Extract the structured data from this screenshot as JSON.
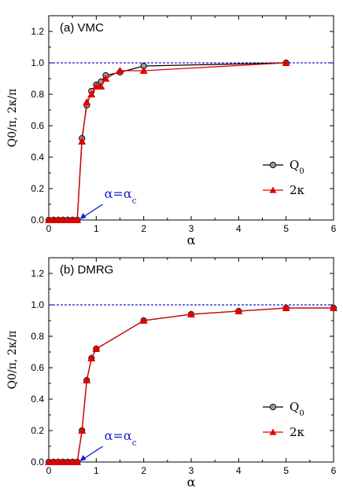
{
  "chart_data": [
    {
      "type": "line",
      "title": "(a) VMC",
      "xlabel": "α",
      "ylabel": "Q0/π, 2κ/π",
      "xlim": [
        0,
        6
      ],
      "ylim": [
        0,
        1.3
      ],
      "xticks": [
        "0",
        "1",
        "2",
        "3",
        "4",
        "5",
        "6"
      ],
      "yticks": [
        "0.0",
        "0.2",
        "0.4",
        "0.6",
        "0.8",
        "1.0",
        "1.2"
      ],
      "reference_line": {
        "y": 1.0,
        "style": "dotted",
        "color": "#1a1adb"
      },
      "annotation": {
        "text": "α=α",
        "subscript": "c",
        "x": 0.64,
        "y": 0.0,
        "color": "#1a1adb"
      },
      "legend": {
        "placement": "right",
        "entries": [
          {
            "name": "Q",
            "sub": "0"
          },
          {
            "name": "2κ",
            "sub": ""
          }
        ]
      },
      "series": [
        {
          "name": "Q0",
          "marker": "circle",
          "color": "#000000",
          "x": [
            0,
            0.1,
            0.2,
            0.3,
            0.4,
            0.5,
            0.6,
            0.7,
            0.8,
            0.9,
            1.0,
            1.1,
            1.2,
            1.5,
            2.0,
            5.0
          ],
          "y": [
            0,
            0,
            0,
            0,
            0,
            0,
            0,
            0.52,
            0.73,
            0.82,
            0.86,
            0.88,
            0.92,
            0.94,
            0.98,
            1.0
          ]
        },
        {
          "name": "2κ",
          "marker": "triangle",
          "color": "#e00000",
          "x": [
            0,
            0.1,
            0.2,
            0.3,
            0.4,
            0.5,
            0.6,
            0.7,
            0.8,
            0.9,
            1.0,
            1.1,
            1.2,
            1.5,
            2.0,
            5.0
          ],
          "y": [
            0,
            0,
            0,
            0,
            0,
            0,
            0,
            0.5,
            0.75,
            0.8,
            0.85,
            0.85,
            0.9,
            0.95,
            0.95,
            1.0
          ]
        }
      ]
    },
    {
      "type": "line",
      "title": "(b) DMRG",
      "xlabel": "α",
      "ylabel": "Q0/π, 2κ/π",
      "xlim": [
        0,
        6
      ],
      "ylim": [
        0,
        1.3
      ],
      "xticks": [
        "0",
        "1",
        "2",
        "3",
        "4",
        "5",
        "6"
      ],
      "yticks": [
        "0.0",
        "0.2",
        "0.4",
        "0.6",
        "0.8",
        "1.0",
        "1.2"
      ],
      "reference_line": {
        "y": 1.0,
        "style": "dotted",
        "color": "#1a1adb"
      },
      "annotation": {
        "text": "α=α",
        "subscript": "c",
        "x": 0.64,
        "y": 0.0,
        "color": "#1a1adb"
      },
      "legend": {
        "placement": "right",
        "entries": [
          {
            "name": "Q",
            "sub": "0"
          },
          {
            "name": "2κ",
            "sub": ""
          }
        ]
      },
      "series": [
        {
          "name": "Q0",
          "marker": "circle",
          "color": "#000000",
          "x": [
            0,
            0.1,
            0.2,
            0.3,
            0.4,
            0.5,
            0.6,
            0.7,
            0.8,
            0.9,
            1.0,
            2.0,
            3.0,
            4.0,
            5.0,
            6.0
          ],
          "y": [
            0,
            0,
            0,
            0,
            0,
            0,
            0,
            0.2,
            0.52,
            0.66,
            0.72,
            0.9,
            0.94,
            0.96,
            0.98,
            0.98
          ]
        },
        {
          "name": "2κ",
          "marker": "triangle",
          "color": "#e00000",
          "x": [
            0,
            0.1,
            0.2,
            0.3,
            0.4,
            0.5,
            0.6,
            0.7,
            0.8,
            0.9,
            1.0,
            2.0,
            3.0,
            4.0,
            5.0,
            6.0
          ],
          "y": [
            0,
            0,
            0,
            0,
            0,
            0,
            0,
            0.2,
            0.52,
            0.66,
            0.72,
            0.9,
            0.94,
            0.96,
            0.98,
            0.98
          ]
        }
      ]
    }
  ]
}
